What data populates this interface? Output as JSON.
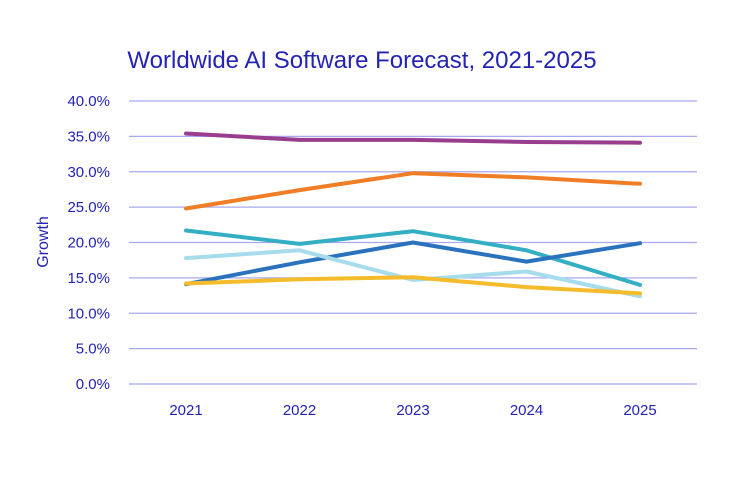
{
  "chart_data": {
    "type": "line",
    "title": "Worldwide AI Software Forecast, 2021-2025",
    "xlabel": "",
    "ylabel": "Growth",
    "categories": [
      "2021",
      "2022",
      "2023",
      "2024",
      "2025"
    ],
    "ylim": [
      0,
      40
    ],
    "yticks": [
      "0.0%",
      "5.0%",
      "10.0%",
      "15.0%",
      "20.0%",
      "25.0%",
      "30.0%",
      "35.0%",
      "40.0%"
    ],
    "grid": true,
    "legend": "none",
    "series": [
      {
        "color": "#993d8f",
        "values": [
          35.4,
          34.5,
          34.5,
          34.2,
          34.1
        ]
      },
      {
        "color": "#f07e26",
        "values": [
          24.8,
          27.4,
          29.8,
          29.2,
          28.3
        ]
      },
      {
        "color": "#33aec2",
        "values": [
          21.7,
          19.8,
          21.6,
          18.9,
          14.0
        ]
      },
      {
        "color": "#2a72bd",
        "values": [
          14.1,
          17.2,
          20.0,
          17.3,
          19.9
        ]
      },
      {
        "color": "#a6dceb",
        "values": [
          17.8,
          18.9,
          14.7,
          15.9,
          12.4
        ]
      },
      {
        "color": "#f4bc2a",
        "values": [
          14.2,
          14.8,
          15.1,
          13.7,
          12.8
        ]
      }
    ]
  }
}
